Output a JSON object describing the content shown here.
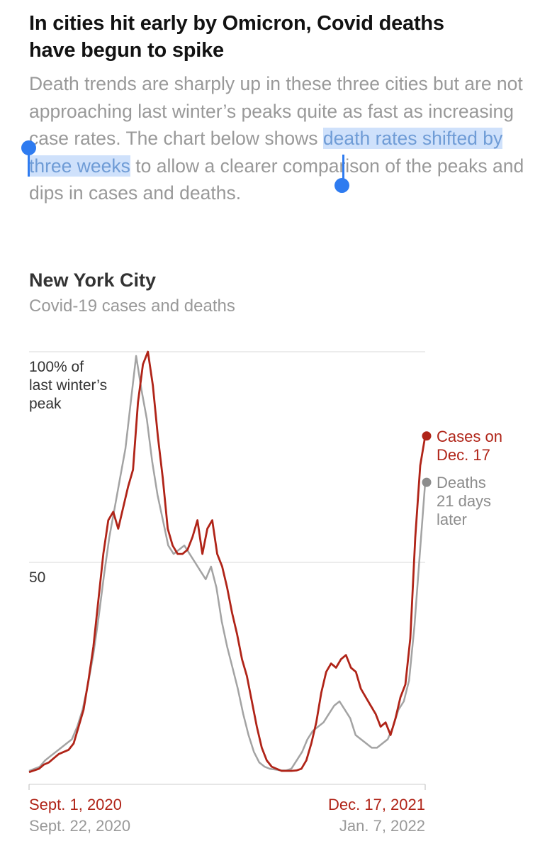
{
  "headline": {
    "line1": "In cities hit early by Omicron, Covid deaths",
    "line2": "have begun to spike"
  },
  "dek": {
    "part1": "Death trends are sharply up in these three cities but are not approaching last winter’s peaks quite as fast as increasing case rates. The chart below shows ",
    "highlight": "death rates shifted by three weeks",
    "part2": " to allow a clearer comparison of the peaks and dips in cases and deaths."
  },
  "colors": {
    "cases": "#b02418",
    "deaths": "#a3a3a3",
    "highlight": "#cfe1fb",
    "handle": "#2e7bf0"
  },
  "chart_data": {
    "type": "line",
    "title": "New York City",
    "subtitle": "Covid-19 cases and deaths",
    "ylim": [
      0,
      100
    ],
    "y_ticks": [
      {
        "value": 100,
        "label_lines": [
          "100% of",
          "last winter’s",
          "peak"
        ]
      },
      {
        "value": 50,
        "label_lines": [
          "50"
        ]
      }
    ],
    "x_ticks": [
      {
        "cases_label": "Sept. 1, 2020",
        "deaths_label": "Sept. 22, 2020"
      },
      {
        "cases_label": "Dec. 17, 2021",
        "deaths_label": "Jan. 7, 2022"
      }
    ],
    "series": [
      {
        "name": "Cases",
        "end_label_lines": [
          "Cases on",
          "Dec. 17"
        ],
        "x_start": "2020-09-01",
        "x_end": "2021-12-17",
        "values": [
          0.2,
          0.6,
          1,
          2,
          2.5,
          3.5,
          4.5,
          5,
          5.5,
          7,
          11,
          15,
          22,
          30,
          41,
          52,
          60,
          62,
          58,
          63,
          68,
          72,
          88,
          97,
          100,
          92,
          80,
          70,
          58,
          54,
          52,
          52,
          53,
          56,
          60,
          52,
          58,
          60,
          52,
          49,
          44,
          38,
          33,
          27,
          23,
          17,
          11,
          6,
          3,
          1.5,
          1,
          0.5,
          0.5,
          0.5,
          0.6,
          1,
          3,
          7,
          12,
          19,
          24,
          26,
          25,
          27,
          28,
          25,
          24,
          20,
          18,
          16,
          14,
          11,
          12,
          9,
          13,
          18,
          21,
          32,
          56,
          73,
          80
        ]
      },
      {
        "name": "Deaths",
        "end_label_lines": [
          "Deaths",
          "21 days",
          "later"
        ],
        "x_start": "2020-09-22",
        "x_end": "2022-01-07",
        "values": [
          0.5,
          1,
          1.5,
          3,
          4,
          5,
          6,
          7,
          8,
          11,
          15,
          21,
          28,
          37,
          47,
          56,
          63,
          70,
          77,
          88,
          99,
          91,
          84,
          74,
          66,
          60,
          54,
          52,
          53,
          54,
          52,
          50,
          48,
          46,
          49,
          44,
          36,
          30,
          25,
          20,
          14,
          9,
          5,
          2.5,
          1.5,
          1,
          0.8,
          0.6,
          0.6,
          1,
          3,
          5,
          8,
          10,
          11,
          12,
          14,
          16,
          17,
          15,
          13,
          9,
          8,
          7,
          6,
          6,
          7,
          8,
          11,
          15,
          17,
          22,
          35,
          52,
          69
        ]
      }
    ]
  }
}
